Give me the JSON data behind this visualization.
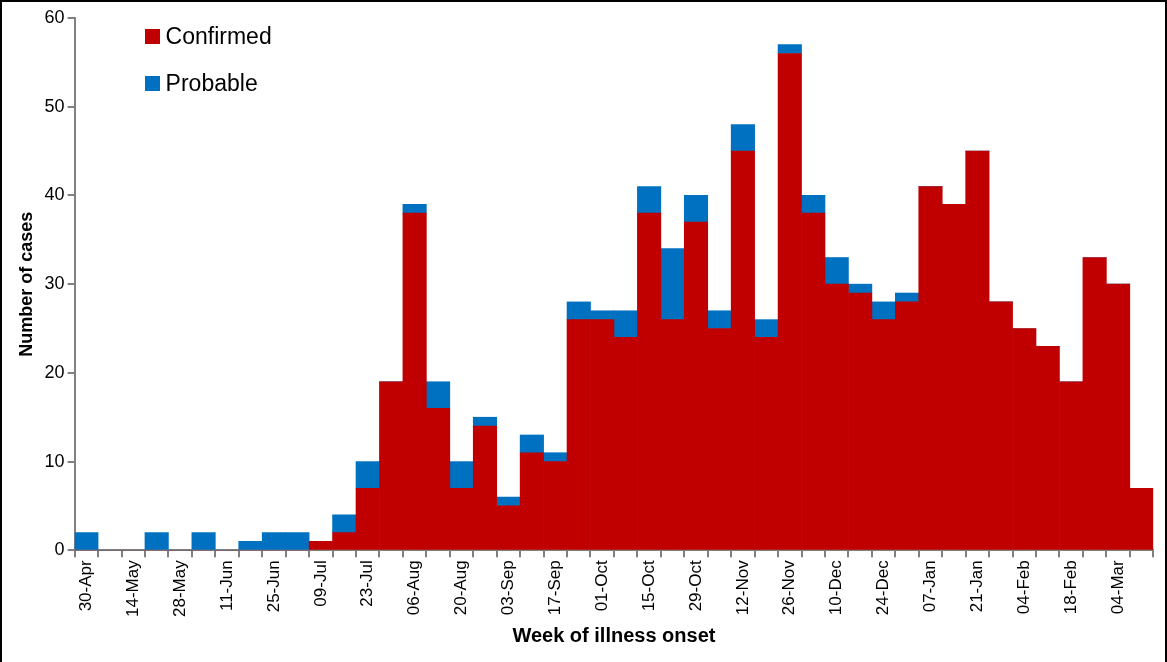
{
  "chart_data": {
    "type": "bar",
    "stacked": true,
    "xlabel": "Week of illness onset",
    "ylabel": "Number of cases",
    "categories": [
      "30-Apr",
      null,
      "14-May",
      null,
      "28-May",
      null,
      "11-Jun",
      null,
      "25-Jun",
      null,
      "09-Jul",
      null,
      "23-Jul",
      null,
      "06-Aug",
      null,
      "20-Aug",
      null,
      "03-Sep",
      null,
      "17-Sep",
      null,
      "01-Oct",
      null,
      "15-Oct",
      null,
      "29-Oct",
      null,
      "12-Nov",
      null,
      "26-Nov",
      null,
      "10-Dec",
      null,
      "24-Dec",
      null,
      "07-Jan",
      null,
      "21-Jan",
      null,
      "04-Feb",
      null,
      "18-Feb",
      null,
      "04-Mar",
      null
    ],
    "series": [
      {
        "name": "Confirmed",
        "color": "#c00000",
        "values": [
          0,
          0,
          0,
          0,
          0,
          0,
          0,
          0,
          0,
          0,
          1,
          2,
          7,
          19,
          38,
          16,
          7,
          14,
          5,
          11,
          10,
          26,
          26,
          24,
          38,
          26,
          37,
          25,
          45,
          24,
          56,
          38,
          30,
          29,
          26,
          28,
          41,
          39,
          45,
          28,
          25,
          23,
          19,
          33,
          30,
          7
        ]
      },
      {
        "name": "Probable",
        "color": "#0070c0",
        "values": [
          2,
          0,
          0,
          2,
          0,
          2,
          0,
          1,
          2,
          2,
          0,
          2,
          3,
          0,
          1,
          3,
          3,
          1,
          1,
          2,
          1,
          2,
          1,
          3,
          3,
          8,
          3,
          2,
          3,
          2,
          1,
          2,
          3,
          1,
          2,
          1,
          0,
          0,
          0,
          0,
          0,
          0,
          0,
          0,
          0,
          0
        ]
      }
    ],
    "ylim": [
      0,
      60
    ],
    "yticks": [
      0,
      10,
      20,
      30,
      40,
      50,
      60
    ],
    "grid": false,
    "legend": "top left"
  }
}
